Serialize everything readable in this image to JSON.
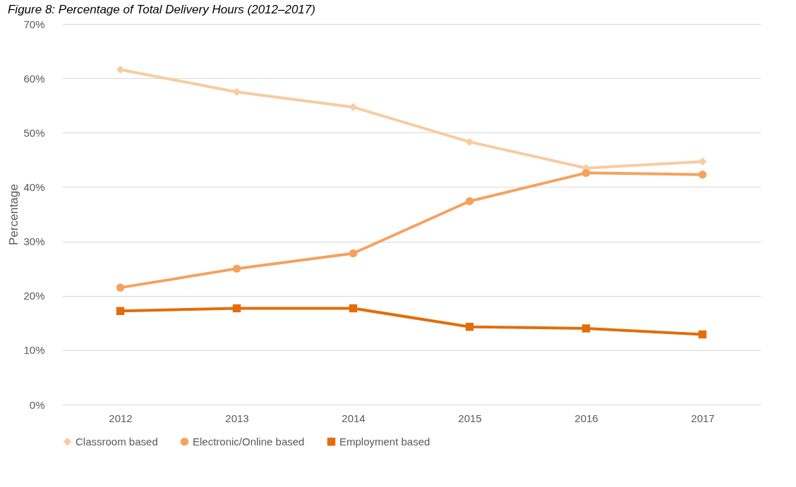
{
  "chart_data": {
    "type": "line",
    "title": "Figure 8: Percentage of Total Delivery Hours (2012–2017)",
    "ylabel": "Percentage",
    "categories": [
      "2012",
      "2013",
      "2014",
      "2015",
      "2016",
      "2017"
    ],
    "series": [
      {
        "name": "Classroom based",
        "color": "#f8cba0",
        "marker": "diamond",
        "values": [
          61.6,
          57.5,
          54.7,
          48.3,
          43.5,
          44.7
        ]
      },
      {
        "name": "Electronic/Online based",
        "color": "#f4a25e",
        "marker": "circle",
        "values": [
          21.5,
          25.0,
          27.8,
          37.4,
          42.6,
          42.3
        ]
      },
      {
        "name": "Employment based",
        "color": "#e46c0a",
        "marker": "square",
        "values": [
          17.2,
          17.7,
          17.7,
          14.3,
          14.0,
          12.9
        ]
      }
    ],
    "ylim": [
      0,
      70
    ],
    "yticks": [
      {
        "value": 0,
        "label": "0%"
      },
      {
        "value": 10,
        "label": "10%"
      },
      {
        "value": 20,
        "label": "20%"
      },
      {
        "value": 30,
        "label": "30%"
      },
      {
        "value": 40,
        "label": "40%"
      },
      {
        "value": 50,
        "label": "50%"
      },
      {
        "value": 60,
        "label": "60%"
      },
      {
        "value": 70,
        "label": "70%"
      }
    ],
    "grid": "y",
    "legend": "bottom",
    "line_style": "solid"
  }
}
